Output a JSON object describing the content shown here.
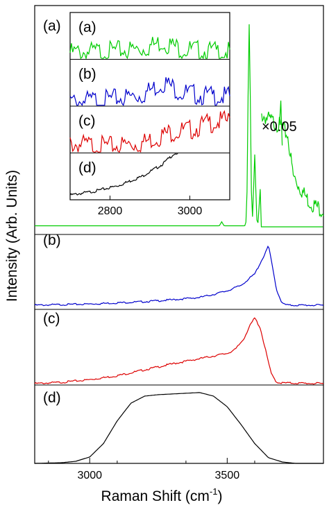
{
  "chart_data": {
    "type": "line",
    "x_axis": {
      "label_main": "Raman Shift (cm",
      "label_sup": "-1",
      "label_close": ")",
      "range": [
        2800,
        3850
      ],
      "ticks": [
        3000,
        3500
      ],
      "tick_labels": [
        "3000",
        "3500"
      ]
    },
    "y_axis": {
      "label": "Intensity (Arb. Units)",
      "range": [
        0,
        1
      ]
    },
    "scale_annotation": "×0.05",
    "colors": {
      "a": "#00cc00",
      "b": "#0000cc",
      "c": "#dd0000",
      "d": "#000000"
    },
    "panels": [
      {
        "id": "a",
        "label": "(a)",
        "color": "#00cc00",
        "peaks": [
          [
            3480,
            0.02
          ],
          [
            3580,
            0.99
          ],
          [
            3600,
            0.35
          ],
          [
            3620,
            0.18
          ]
        ],
        "scaled_segment": {
          "factor": "×0.05",
          "x": [
            3625,
            3660,
            3690,
            3720,
            3740,
            3770,
            3800,
            3850
          ],
          "y": [
            0.55,
            0.52,
            0.5,
            0.45,
            0.25,
            0.18,
            0.12,
            0.08
          ]
        }
      },
      {
        "id": "b",
        "label": "(b)",
        "color": "#0000cc",
        "x": [
          2800,
          2900,
          3000,
          3100,
          3200,
          3300,
          3400,
          3450,
          3500,
          3550,
          3600,
          3620,
          3640,
          3650,
          3660,
          3680,
          3700,
          3720,
          3850
        ],
        "y": [
          0.0,
          0.01,
          0.02,
          0.04,
          0.06,
          0.09,
          0.13,
          0.18,
          0.24,
          0.33,
          0.52,
          0.7,
          0.88,
          1.0,
          0.75,
          0.25,
          0.03,
          0.0,
          0.0
        ]
      },
      {
        "id": "c",
        "label": "(c)",
        "color": "#dd0000",
        "x": [
          2800,
          2900,
          3000,
          3100,
          3200,
          3300,
          3400,
          3450,
          3500,
          3530,
          3560,
          3580,
          3600,
          3620,
          3640,
          3660,
          3680,
          3700,
          3850
        ],
        "y": [
          0.0,
          0.02,
          0.06,
          0.12,
          0.21,
          0.3,
          0.38,
          0.42,
          0.46,
          0.52,
          0.68,
          0.86,
          1.0,
          0.85,
          0.5,
          0.15,
          0.02,
          0.01,
          0.0
        ]
      },
      {
        "id": "d",
        "label": "(d)",
        "color": "#000000",
        "x": [
          2800,
          2900,
          2950,
          3000,
          3050,
          3100,
          3150,
          3200,
          3250,
          3300,
          3350,
          3400,
          3450,
          3500,
          3550,
          3600,
          3650,
          3700,
          3750,
          3850
        ],
        "y": [
          0.0,
          0.01,
          0.03,
          0.09,
          0.28,
          0.6,
          0.85,
          0.95,
          0.97,
          0.98,
          0.99,
          1.0,
          0.95,
          0.8,
          0.55,
          0.28,
          0.08,
          0.02,
          0.0,
          0.0
        ]
      }
    ],
    "inset": {
      "x_range": [
        2700,
        3100
      ],
      "ticks": [
        2800,
        3000
      ],
      "tick_labels": [
        "2800",
        "3000"
      ],
      "panels": [
        {
          "id": "a",
          "label": "(a)",
          "color": "#00cc00",
          "x": [
            2700,
            2800,
            2880,
            2930,
            2980,
            3050,
            3100
          ],
          "y": [
            0.25,
            0.28,
            0.33,
            0.48,
            0.33,
            0.28,
            0.26
          ]
        },
        {
          "id": "b",
          "label": "(b)",
          "color": "#0000cc",
          "x": [
            2700,
            2800,
            2880,
            2935,
            2980,
            3050,
            3100
          ],
          "y": [
            0.2,
            0.25,
            0.35,
            0.62,
            0.4,
            0.32,
            0.3
          ]
        },
        {
          "id": "c",
          "label": "(c)",
          "color": "#dd0000",
          "x": [
            2700,
            2800,
            2880,
            2950,
            3000,
            3050,
            3100
          ],
          "y": [
            0.3,
            0.25,
            0.32,
            0.55,
            0.6,
            0.75,
            0.8
          ]
        },
        {
          "id": "d",
          "label": "(d)",
          "color": "#000000",
          "x": [
            2700,
            2760,
            2820,
            2880,
            2930,
            2960,
            2970
          ],
          "y": [
            0.1,
            0.18,
            0.3,
            0.5,
            0.75,
            0.98,
            1.0
          ]
        }
      ]
    }
  }
}
